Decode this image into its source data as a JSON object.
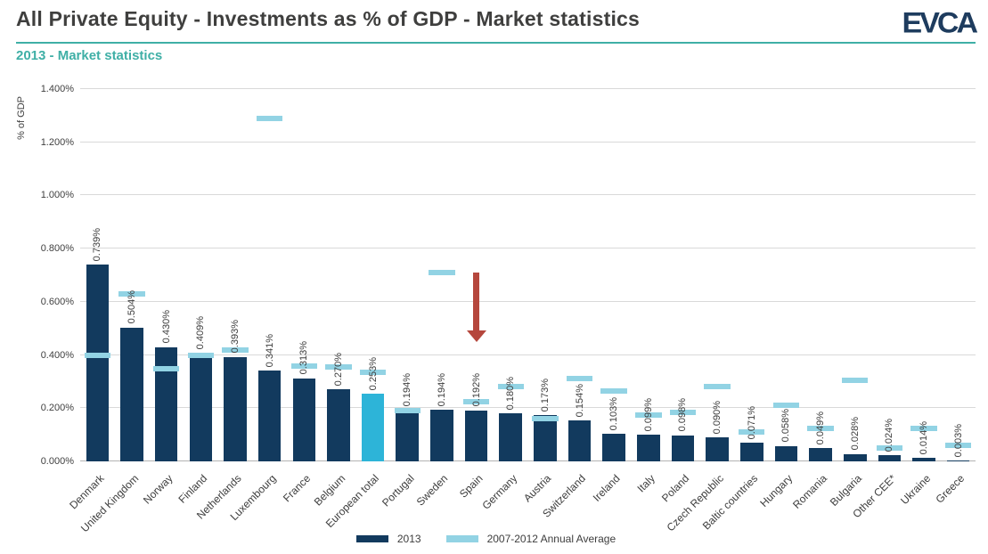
{
  "header": {
    "title": "All Private Equity - Investments as % of GDP - Market statistics",
    "subtitle": "2013 - Market statistics",
    "logo": "EVCA"
  },
  "colors": {
    "navy": "#123a5e",
    "light_blue": "#92d3e4",
    "highlight_blue": "#2db4d8",
    "teal": "#3fafa6",
    "arrow_red": "#b5473d"
  },
  "chart_data": {
    "type": "bar",
    "title": "All Private Equity - Investments as % of GDP - Market statistics",
    "ylabel": "% of GDP",
    "ylim": [
      0,
      1.4
    ],
    "ytick_step": 0.2,
    "grid": true,
    "legend_position": "bottom",
    "categories": [
      "Denmark",
      "United Kingdom",
      "Norway",
      "Finland",
      "Netherlands",
      "Luxembourg",
      "France",
      "Belgium",
      "European total",
      "Portugal",
      "Sweden",
      "Spain",
      "Germany",
      "Austria",
      "Switzerland",
      "Ireland",
      "Italy",
      "Poland",
      "Czech Republic",
      "Baltic countries",
      "Hungary",
      "Romania",
      "Bulgaria",
      "Other CEE*",
      "Ukraine",
      "Greece"
    ],
    "series": [
      {
        "name": "2013",
        "color": "#123a5e",
        "values": [
          0.739,
          0.504,
          0.43,
          0.409,
          0.393,
          0.341,
          0.313,
          0.27,
          0.253,
          0.194,
          0.194,
          0.192,
          0.18,
          0.173,
          0.154,
          0.103,
          0.099,
          0.098,
          0.09,
          0.071,
          0.058,
          0.049,
          0.028,
          0.024,
          0.014,
          0.003
        ]
      },
      {
        "name": "2007-2012 Annual Average",
        "color": "#92d3e4",
        "values": [
          0.4,
          0.63,
          0.35,
          0.4,
          0.42,
          1.29,
          0.36,
          0.355,
          0.335,
          0.19,
          0.71,
          0.225,
          0.28,
          0.16,
          0.31,
          0.265,
          0.175,
          0.185,
          0.28,
          0.11,
          0.21,
          0.125,
          0.305,
          0.05,
          0.125,
          0.06
        ]
      }
    ],
    "bar_value_labels": [
      "0.739%",
      "0.504%",
      "0.430%",
      "0.409%",
      "0.393%",
      "0.341%",
      "0.313%",
      "0.270%",
      "0.253%",
      "0.194%",
      "0.194%",
      "0.192%",
      "0.180%",
      "0.173%",
      "0.154%",
      "0.103%",
      "0.099%",
      "0.098%",
      "0.090%",
      "0.071%",
      "0.058%",
      "0.049%",
      "0.028%",
      "0.024%",
      "0.014%",
      "0.003%"
    ],
    "highlight": {
      "category": "European total",
      "color": "#2db4d8"
    },
    "annotation": {
      "type": "arrow-down",
      "category": "Spain",
      "from_value": 0.71,
      "to_value": 0.45,
      "color": "#b5473d"
    }
  }
}
